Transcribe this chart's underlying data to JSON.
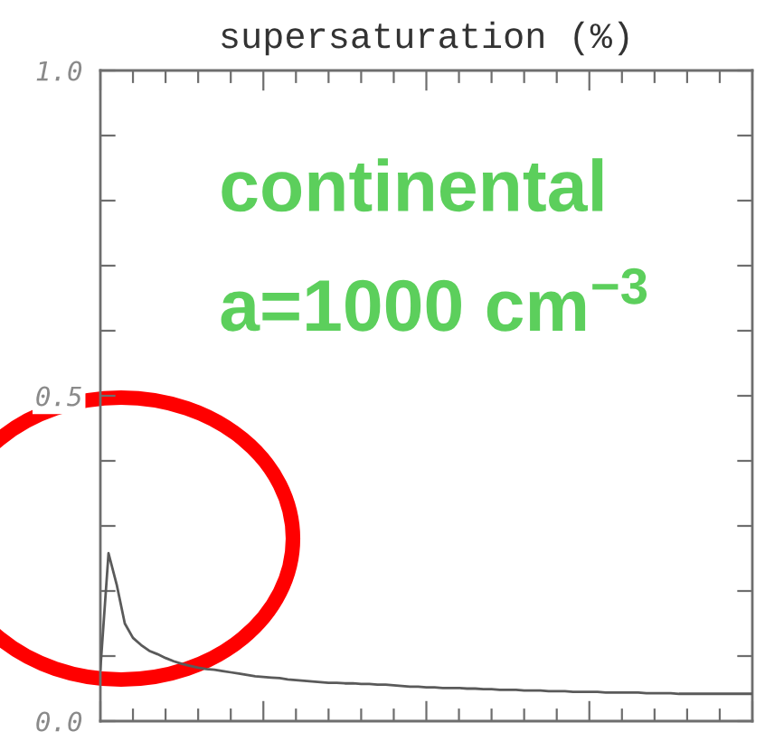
{
  "chart_data": {
    "type": "line",
    "title": "supersaturation (%)",
    "annotations": [
      "continental",
      "a=1000 cm$^{−3}$"
    ],
    "categories": [
      null,
      null,
      null,
      null,
      null,
      null,
      null,
      null,
      null,
      null,
      null,
      null,
      null,
      null,
      null,
      null,
      null,
      null,
      null,
      null,
      null,
      null,
      null,
      null,
      null,
      null,
      null,
      null,
      null,
      null,
      null,
      null,
      null,
      null,
      null,
      null,
      null,
      null,
      null,
      null,
      null,
      null,
      null,
      null,
      null,
      null,
      null,
      null,
      null,
      null,
      null,
      null,
      null,
      null,
      null,
      null,
      null,
      null,
      null,
      null,
      null,
      null,
      null,
      null,
      null,
      null,
      null,
      null,
      null,
      null,
      null,
      null,
      null,
      null,
      null,
      null,
      null,
      null,
      null,
      null,
      null
    ],
    "series": [
      {
        "color": "#5a5a5a",
        "values": [
          0.08,
          0.258,
          0.21,
          0.15,
          0.128,
          0.117,
          0.108,
          0.103,
          0.097,
          0.092,
          0.088,
          0.085,
          0.082,
          0.08,
          0.079,
          0.077,
          0.075,
          0.073,
          0.071,
          0.069,
          0.068,
          0.067,
          0.066,
          0.064,
          0.063,
          0.062,
          0.061,
          0.06,
          0.059,
          0.059,
          0.058,
          0.058,
          0.057,
          0.057,
          0.056,
          0.056,
          0.055,
          0.054,
          0.053,
          0.053,
          0.052,
          0.052,
          0.051,
          0.051,
          0.051,
          0.05,
          0.05,
          0.049,
          0.049,
          0.048,
          0.048,
          0.048,
          0.047,
          0.047,
          0.047,
          0.046,
          0.046,
          0.046,
          0.045,
          0.045,
          0.045,
          0.045,
          0.044,
          0.044,
          0.044,
          0.044,
          0.044,
          0.043,
          0.043,
          0.043,
          0.043,
          0.042,
          0.042,
          0.042,
          0.042,
          0.042,
          0.042,
          0.042,
          0.042,
          0.042,
          0.042
        ]
      }
    ],
    "ylim": [
      0,
      1
    ],
    "yticks": [
      {
        "value": 0,
        "label": "0.0"
      },
      {
        "value": 0.1,
        "label": null
      },
      {
        "value": 0.2,
        "label": null
      },
      {
        "value": 0.3,
        "label": null
      },
      {
        "value": 0.4,
        "label": null
      },
      {
        "value": 0.5,
        "label": "0.5"
      },
      {
        "value": 0.6,
        "label": null
      },
      {
        "value": 0.7,
        "label": null
      },
      {
        "value": 0.8,
        "label": null
      },
      {
        "value": 0.9,
        "label": null
      },
      {
        "value": 1,
        "label": "1.0"
      }
    ],
    "grid": false,
    "legend": false
  }
}
